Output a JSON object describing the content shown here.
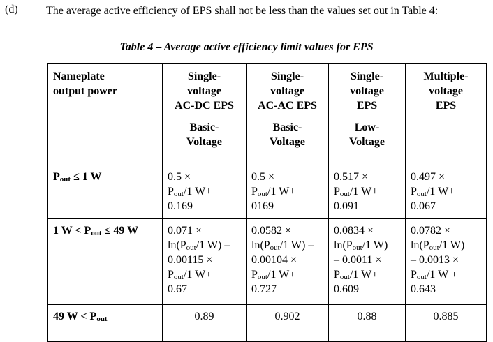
{
  "item_label": "(d)",
  "paragraph": "The average active efficiency of EPS shall not be less than the values set out in Table 4:",
  "caption": "Table 4 – Average active efficiency limit values for EPS",
  "table": {
    "header": [
      {
        "groups": [
          [
            "Nameplate",
            "output power"
          ]
        ]
      },
      {
        "groups": [
          [
            "Single-",
            "voltage",
            "AC-DC EPS"
          ],
          [
            "Basic-",
            "Voltage"
          ]
        ]
      },
      {
        "groups": [
          [
            "Single-",
            "voltage",
            "AC-AC EPS"
          ],
          [
            "Basic-",
            "Voltage"
          ]
        ]
      },
      {
        "groups": [
          [
            "Single-",
            "voltage",
            "EPS"
          ],
          [
            "Low-",
            "Voltage"
          ]
        ]
      },
      {
        "groups": [
          [
            "Multiple-",
            "voltage",
            "EPS"
          ]
        ]
      }
    ],
    "rows": [
      {
        "label": [
          "P",
          "out",
          " ≤ 1 W"
        ],
        "cells": [
          [
            [
              "0.5 ×"
            ],
            [
              "P",
              "out",
              "/1 W+"
            ],
            [
              "0.169"
            ]
          ],
          [
            [
              "0.5 ×"
            ],
            [
              "P",
              "out",
              "/1 W+"
            ],
            [
              "0169"
            ]
          ],
          [
            [
              "0.517 ×"
            ],
            [
              "P",
              "out",
              "/1 W+"
            ],
            [
              "0.091"
            ]
          ],
          [
            [
              "0.497 ×"
            ],
            [
              "P",
              "out",
              "/1 W+"
            ],
            [
              "0.067"
            ]
          ]
        ]
      },
      {
        "label": [
          "1 W < P",
          "out",
          " ≤ 49 W"
        ],
        "cells": [
          [
            [
              "0.071 ×"
            ],
            [
              "ln(P",
              "out",
              "/1 W) –"
            ],
            [
              "0.00115 ×"
            ],
            [
              "P",
              "out",
              "/1 W+"
            ],
            [
              "0.67"
            ]
          ],
          [
            [
              "0.0582 ×"
            ],
            [
              "ln(P",
              "out",
              "/1 W) –"
            ],
            [
              "0.00104 ×"
            ],
            [
              "P",
              "out",
              "/1 W+"
            ],
            [
              "0.727"
            ]
          ],
          [
            [
              "0.0834 ×"
            ],
            [
              "ln(P",
              "out",
              "/1 W)"
            ],
            [
              "– 0.0011 ×"
            ],
            [
              "P",
              "out",
              "/1 W+"
            ],
            [
              "0.609"
            ]
          ],
          [
            [
              "0.0782 ×"
            ],
            [
              "ln(P",
              "out",
              "/1 W)"
            ],
            [
              "– 0.0013 ×"
            ],
            [
              "P",
              "out",
              "/1 W +"
            ],
            [
              "0.643"
            ]
          ]
        ]
      },
      {
        "label": [
          "49 W < P",
          "out",
          ""
        ],
        "cells": [
          [
            [
              "0.89"
            ]
          ],
          [
            [
              "0.902"
            ]
          ],
          [
            [
              "0.88"
            ]
          ],
          [
            [
              "0.885"
            ]
          ]
        ]
      }
    ]
  }
}
